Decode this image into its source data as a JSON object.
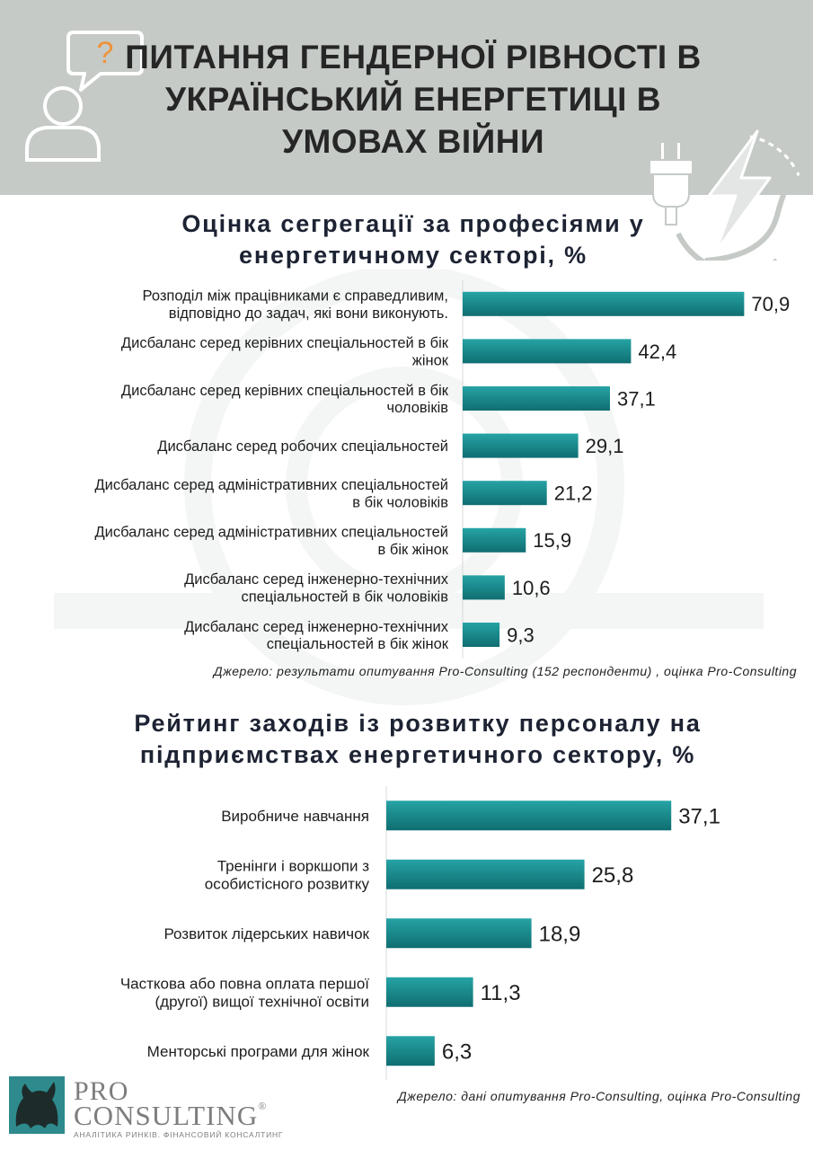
{
  "header": {
    "title": "ПИТАННЯ ГЕНДЕРНОЇ РІВНОСТІ В УКРАЇНСЬКИЙ ЕНЕРГЕТИЦІ В УМОВАХ ВІЙНИ",
    "question_mark": "?"
  },
  "colors": {
    "header_bg": "#c5cac6",
    "bar_top": "#26a3a5",
    "bar_bottom": "#0f6e71",
    "accent_question": "#f0913a"
  },
  "icons": [
    "question-bubble-icon",
    "person-icon",
    "power-plug-icon",
    "lightning-icon"
  ],
  "chart_data": [
    {
      "type": "bar",
      "orientation": "horizontal",
      "title": "Оцінка сегрегації за професіями у енергетичному секторі, %",
      "categories": [
        "Розподіл між працівниками є справедливим, відповідно до задач, які вони виконують.",
        "Дисбаланс серед керівних спеціальностей в бік жінок",
        "Дисбаланс серед керівних спеціальностей в бік чоловіків",
        "Дисбаланс серед робочих спеціальностей",
        "Дисбаланс серед адміністративних спеціальностей в бік чоловіків",
        "Дисбаланс серед адміністративних спеціальностей в бік жінок",
        "Дисбаланс серед інженерно-технічних спеціальностей в бік чоловіків",
        "Дисбаланс серед інженерно-технічних спеціальностей в бік жінок"
      ],
      "label_lines": [
        [
          "Розподіл між працівниками є справедливим,",
          "відповідно до задач, які вони виконують."
        ],
        [
          "Дисбаланс серед керівних спеціальностей в бік",
          "жінок"
        ],
        [
          "Дисбаланс серед керівних спеціальностей в бік",
          "чоловіків"
        ],
        [
          "Дисбаланс серед робочих спеціальностей"
        ],
        [
          "Дисбаланс серед адміністративних спеціальностей",
          "в бік чоловіків"
        ],
        [
          "Дисбаланс серед адміністративних спеціальностей",
          "в бік жінок"
        ],
        [
          "Дисбаланс серед інженерно-технічних",
          "спеціальностей в бік чоловіків"
        ],
        [
          "Дисбаланс серед інженерно-технічних",
          "спеціальностей в бік жінок"
        ]
      ],
      "values": [
        70.9,
        42.4,
        37.1,
        29.1,
        21.2,
        15.9,
        10.6,
        9.3
      ],
      "value_labels": [
        "70,9",
        "42,4",
        "37,1",
        "29,1",
        "21,2",
        "15,9",
        "10,6",
        "9,3"
      ],
      "source": "Джерело: результати опитування Pro-Consulting (152 респонденти) , оцінка Pro-Consulting",
      "grid": false
    },
    {
      "type": "bar",
      "orientation": "horizontal",
      "title": "Рейтинг заходів із розвитку персоналу на підприємствах енергетичного сектору, %",
      "categories": [
        "Виробниче навчання",
        "Тренінги і воркшопи з особистісного розвитку",
        "Розвиток лідерських навичок",
        "Часткова або повна оплата першої (другої) вищої технічної освіти",
        "Менторські програми для жінок"
      ],
      "label_lines": [
        [
          "Виробниче навчання"
        ],
        [
          "Тренінги і воркшопи з",
          "особистісного розвитку"
        ],
        [
          "Розвиток лідерських навичок"
        ],
        [
          "Часткова або повна оплата першої",
          "(другої) вищої технічної освіти"
        ],
        [
          "Менторські програми для жінок"
        ]
      ],
      "values": [
        37.1,
        25.8,
        18.9,
        11.3,
        6.3
      ],
      "value_labels": [
        "37,1",
        "25,8",
        "18,9",
        "11,3",
        "6,3"
      ],
      "source": "Джерело: дані опитування Pro-Consulting, оцінка Pro-Consulting",
      "grid": false
    }
  ],
  "logo": {
    "line1": "PRO",
    "line2": "CONSULTING",
    "registered": "®",
    "tagline": "АНАЛІТИКА РИНКІВ. ФІНАНСОВИЙ КОНСАЛТИНГ"
  }
}
